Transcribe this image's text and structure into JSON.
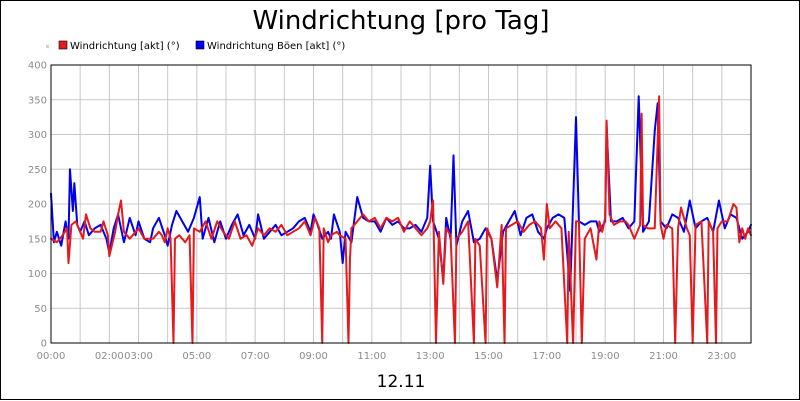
{
  "chart_data": {
    "type": "line",
    "title": "Windrichtung [pro Tag]",
    "xlabel": "12.11",
    "ylabel": "",
    "x_unit": "hours",
    "xlim": [
      0,
      24
    ],
    "ylim": [
      0,
      400
    ],
    "yticks": [
      0,
      50,
      100,
      150,
      200,
      250,
      300,
      350,
      400
    ],
    "xticks": [
      "00:00",
      "02:00",
      "03:00",
      "05:00",
      "07:00",
      "09:00",
      "11:00",
      "13:00",
      "15:00",
      "17:00",
      "19:00",
      "21:00",
      "23:00"
    ],
    "xtick_hours": [
      0,
      2,
      3,
      5,
      7,
      9,
      11,
      13,
      15,
      17,
      19,
      21,
      23
    ],
    "grid": true,
    "legend_position": "top-left",
    "series": [
      {
        "name": "Windrichtung [akt] (°)",
        "color": "#e41a1c",
        "points": [
          [
            0.0,
            150
          ],
          [
            0.2,
            145
          ],
          [
            0.4,
            155
          ],
          [
            0.55,
            165
          ],
          [
            0.6,
            115
          ],
          [
            0.7,
            170
          ],
          [
            0.85,
            175
          ],
          [
            1.0,
            160
          ],
          [
            1.1,
            150
          ],
          [
            1.2,
            185
          ],
          [
            1.35,
            165
          ],
          [
            1.5,
            160
          ],
          [
            1.7,
            160
          ],
          [
            1.8,
            175
          ],
          [
            1.95,
            155
          ],
          [
            2.0,
            125
          ],
          [
            2.2,
            160
          ],
          [
            2.3,
            185
          ],
          [
            2.4,
            205
          ],
          [
            2.5,
            160
          ],
          [
            2.7,
            150
          ],
          [
            2.9,
            160
          ],
          [
            3.0,
            165
          ],
          [
            3.2,
            150
          ],
          [
            3.5,
            150
          ],
          [
            3.7,
            160
          ],
          [
            3.8,
            155
          ],
          [
            3.9,
            145
          ],
          [
            4.0,
            165
          ],
          [
            4.1,
            150
          ],
          [
            4.2,
            0
          ],
          [
            4.25,
            150
          ],
          [
            4.4,
            155
          ],
          [
            4.6,
            145
          ],
          [
            4.75,
            155
          ],
          [
            4.85,
            0
          ],
          [
            4.9,
            165
          ],
          [
            5.1,
            160
          ],
          [
            5.3,
            175
          ],
          [
            5.5,
            150
          ],
          [
            5.7,
            175
          ],
          [
            5.9,
            160
          ],
          [
            6.1,
            150
          ],
          [
            6.3,
            175
          ],
          [
            6.5,
            150
          ],
          [
            6.7,
            155
          ],
          [
            6.9,
            140
          ],
          [
            7.1,
            165
          ],
          [
            7.3,
            155
          ],
          [
            7.5,
            165
          ],
          [
            7.7,
            160
          ],
          [
            7.9,
            170
          ],
          [
            8.1,
            155
          ],
          [
            8.3,
            160
          ],
          [
            8.5,
            165
          ],
          [
            8.7,
            175
          ],
          [
            8.9,
            155
          ],
          [
            9.05,
            180
          ],
          [
            9.2,
            165
          ],
          [
            9.3,
            0
          ],
          [
            9.35,
            165
          ],
          [
            9.5,
            145
          ],
          [
            9.6,
            155
          ],
          [
            9.8,
            160
          ],
          [
            9.9,
            155
          ],
          [
            10.1,
            150
          ],
          [
            10.2,
            0
          ],
          [
            10.25,
            120
          ],
          [
            10.3,
            165
          ],
          [
            10.5,
            175
          ],
          [
            10.7,
            185
          ],
          [
            10.9,
            175
          ],
          [
            11.1,
            180
          ],
          [
            11.3,
            165
          ],
          [
            11.5,
            180
          ],
          [
            11.7,
            175
          ],
          [
            11.9,
            180
          ],
          [
            12.1,
            160
          ],
          [
            12.3,
            175
          ],
          [
            12.5,
            165
          ],
          [
            12.7,
            155
          ],
          [
            12.9,
            165
          ],
          [
            13.0,
            175
          ],
          [
            13.1,
            205
          ],
          [
            13.2,
            0
          ],
          [
            13.3,
            160
          ],
          [
            13.45,
            85
          ],
          [
            13.55,
            165
          ],
          [
            13.7,
            155
          ],
          [
            13.85,
            0
          ],
          [
            13.9,
            150
          ],
          [
            14.1,
            160
          ],
          [
            14.3,
            175
          ],
          [
            14.5,
            0
          ],
          [
            14.55,
            150
          ],
          [
            14.7,
            140
          ],
          [
            14.9,
            0
          ],
          [
            14.95,
            165
          ],
          [
            15.1,
            150
          ],
          [
            15.3,
            80
          ],
          [
            15.45,
            170
          ],
          [
            15.55,
            0
          ],
          [
            15.6,
            165
          ],
          [
            15.8,
            170
          ],
          [
            16.0,
            175
          ],
          [
            16.2,
            160
          ],
          [
            16.4,
            170
          ],
          [
            16.6,
            175
          ],
          [
            16.8,
            165
          ],
          [
            16.9,
            120
          ],
          [
            17.0,
            200
          ],
          [
            17.1,
            165
          ],
          [
            17.3,
            175
          ],
          [
            17.5,
            165
          ],
          [
            17.7,
            0
          ],
          [
            17.75,
            160
          ],
          [
            17.9,
            0
          ],
          [
            18.0,
            175
          ],
          [
            18.1,
            175
          ],
          [
            18.2,
            0
          ],
          [
            18.3,
            150
          ],
          [
            18.5,
            165
          ],
          [
            18.7,
            120
          ],
          [
            18.8,
            175
          ],
          [
            18.9,
            160
          ],
          [
            19.0,
            180
          ],
          [
            19.05,
            320
          ],
          [
            19.15,
            185
          ],
          [
            19.3,
            170
          ],
          [
            19.5,
            175
          ],
          [
            19.7,
            175
          ],
          [
            19.8,
            170
          ],
          [
            19.9,
            160
          ],
          [
            20.0,
            150
          ],
          [
            20.2,
            170
          ],
          [
            20.25,
            330
          ],
          [
            20.3,
            170
          ],
          [
            20.45,
            165
          ],
          [
            20.55,
            165
          ],
          [
            20.7,
            165
          ],
          [
            20.85,
            355
          ],
          [
            20.9,
            170
          ],
          [
            21.0,
            150
          ],
          [
            21.1,
            170
          ],
          [
            21.3,
            165
          ],
          [
            21.4,
            0
          ],
          [
            21.5,
            165
          ],
          [
            21.6,
            195
          ],
          [
            21.7,
            180
          ],
          [
            21.8,
            165
          ],
          [
            21.9,
            155
          ],
          [
            22.0,
            0
          ],
          [
            22.1,
            170
          ],
          [
            22.3,
            175
          ],
          [
            22.5,
            0
          ],
          [
            22.55,
            175
          ],
          [
            22.7,
            160
          ],
          [
            22.8,
            0
          ],
          [
            22.85,
            165
          ],
          [
            23.0,
            175
          ],
          [
            23.2,
            175
          ],
          [
            23.4,
            200
          ],
          [
            23.5,
            195
          ],
          [
            23.6,
            145
          ],
          [
            23.7,
            165
          ],
          [
            23.8,
            150
          ],
          [
            23.9,
            165
          ],
          [
            24.0,
            155
          ]
        ]
      },
      {
        "name": "Windrichtung Böen [akt] (°)",
        "color": "#0000ee",
        "points": [
          [
            0.0,
            215
          ],
          [
            0.1,
            145
          ],
          [
            0.2,
            160
          ],
          [
            0.35,
            140
          ],
          [
            0.5,
            175
          ],
          [
            0.6,
            150
          ],
          [
            0.65,
            250
          ],
          [
            0.75,
            190
          ],
          [
            0.8,
            230
          ],
          [
            0.9,
            170
          ],
          [
            1.0,
            160
          ],
          [
            1.15,
            175
          ],
          [
            1.3,
            155
          ],
          [
            1.5,
            165
          ],
          [
            1.7,
            170
          ],
          [
            1.9,
            150
          ],
          [
            2.0,
            130
          ],
          [
            2.15,
            165
          ],
          [
            2.3,
            185
          ],
          [
            2.5,
            145
          ],
          [
            2.7,
            180
          ],
          [
            2.9,
            155
          ],
          [
            3.0,
            175
          ],
          [
            3.2,
            150
          ],
          [
            3.4,
            145
          ],
          [
            3.5,
            165
          ],
          [
            3.7,
            180
          ],
          [
            3.9,
            155
          ],
          [
            4.0,
            140
          ],
          [
            4.15,
            170
          ],
          [
            4.3,
            190
          ],
          [
            4.5,
            175
          ],
          [
            4.7,
            160
          ],
          [
            4.9,
            180
          ],
          [
            5.1,
            210
          ],
          [
            5.2,
            150
          ],
          [
            5.4,
            180
          ],
          [
            5.6,
            145
          ],
          [
            5.8,
            175
          ],
          [
            6.0,
            150
          ],
          [
            6.2,
            170
          ],
          [
            6.4,
            185
          ],
          [
            6.6,
            155
          ],
          [
            6.8,
            170
          ],
          [
            7.0,
            150
          ],
          [
            7.1,
            185
          ],
          [
            7.3,
            150
          ],
          [
            7.5,
            160
          ],
          [
            7.7,
            170
          ],
          [
            7.9,
            155
          ],
          [
            8.1,
            160
          ],
          [
            8.3,
            165
          ],
          [
            8.5,
            175
          ],
          [
            8.7,
            180
          ],
          [
            8.9,
            160
          ],
          [
            9.0,
            185
          ],
          [
            9.1,
            175
          ],
          [
            9.3,
            150
          ],
          [
            9.5,
            160
          ],
          [
            9.6,
            150
          ],
          [
            9.7,
            185
          ],
          [
            9.9,
            160
          ],
          [
            10.0,
            115
          ],
          [
            10.1,
            160
          ],
          [
            10.3,
            145
          ],
          [
            10.5,
            210
          ],
          [
            10.7,
            180
          ],
          [
            10.9,
            175
          ],
          [
            11.1,
            175
          ],
          [
            11.3,
            160
          ],
          [
            11.5,
            180
          ],
          [
            11.7,
            170
          ],
          [
            11.9,
            175
          ],
          [
            12.1,
            165
          ],
          [
            12.3,
            165
          ],
          [
            12.5,
            170
          ],
          [
            12.7,
            160
          ],
          [
            12.9,
            180
          ],
          [
            13.0,
            255
          ],
          [
            13.1,
            175
          ],
          [
            13.3,
            150
          ],
          [
            13.45,
            90
          ],
          [
            13.55,
            180
          ],
          [
            13.7,
            150
          ],
          [
            13.8,
            270
          ],
          [
            13.9,
            140
          ],
          [
            14.1,
            175
          ],
          [
            14.3,
            190
          ],
          [
            14.5,
            145
          ],
          [
            14.7,
            150
          ],
          [
            14.9,
            165
          ],
          [
            15.1,
            150
          ],
          [
            15.3,
            90
          ],
          [
            15.5,
            160
          ],
          [
            15.7,
            175
          ],
          [
            15.9,
            190
          ],
          [
            16.1,
            155
          ],
          [
            16.3,
            180
          ],
          [
            16.5,
            185
          ],
          [
            16.7,
            160
          ],
          [
            16.9,
            150
          ],
          [
            17.0,
            165
          ],
          [
            17.2,
            180
          ],
          [
            17.4,
            185
          ],
          [
            17.6,
            180
          ],
          [
            17.8,
            75
          ],
          [
            18.0,
            325
          ],
          [
            18.1,
            175
          ],
          [
            18.3,
            170
          ],
          [
            18.5,
            175
          ],
          [
            18.7,
            175
          ],
          [
            18.8,
            160
          ],
          [
            19.0,
            175
          ],
          [
            19.05,
            310
          ],
          [
            19.2,
            175
          ],
          [
            19.4,
            175
          ],
          [
            19.6,
            180
          ],
          [
            19.8,
            165
          ],
          [
            20.0,
            175
          ],
          [
            20.15,
            355
          ],
          [
            20.3,
            160
          ],
          [
            20.5,
            175
          ],
          [
            20.7,
            305
          ],
          [
            20.8,
            345
          ],
          [
            20.9,
            175
          ],
          [
            21.1,
            165
          ],
          [
            21.3,
            185
          ],
          [
            21.5,
            180
          ],
          [
            21.7,
            160
          ],
          [
            21.9,
            205
          ],
          [
            22.1,
            165
          ],
          [
            22.3,
            175
          ],
          [
            22.5,
            180
          ],
          [
            22.7,
            160
          ],
          [
            22.9,
            205
          ],
          [
            23.1,
            165
          ],
          [
            23.3,
            185
          ],
          [
            23.5,
            180
          ],
          [
            23.7,
            150
          ],
          [
            23.9,
            160
          ],
          [
            24.0,
            170
          ]
        ]
      }
    ]
  }
}
